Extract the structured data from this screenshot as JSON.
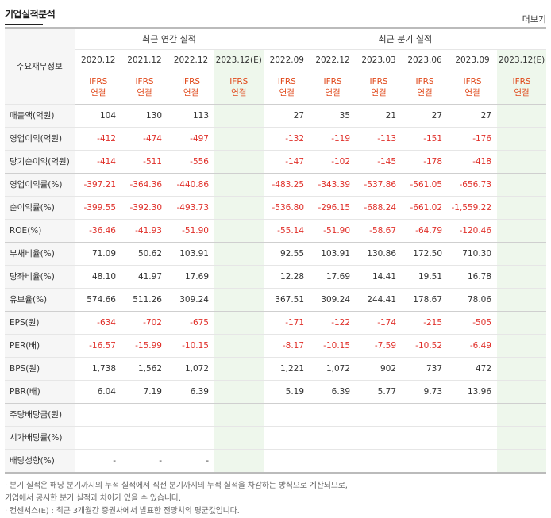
{
  "header": {
    "title": "기업실적분석",
    "more_label": "더보기"
  },
  "table": {
    "row_header_label": "주요재무정보",
    "annual_label": "최근 연간 실적",
    "quarter_label": "최근 분기 실적",
    "annual_dates": [
      "2020.12",
      "2021.12",
      "2022.12",
      "2023.12(E)"
    ],
    "quarter_dates": [
      "2022.09",
      "2022.12",
      "2023.03",
      "2023.06",
      "2023.09",
      "2023.12(E)"
    ],
    "ifrs_top": "IFRS",
    "ifrs_bottom": "연결",
    "rows": [
      {
        "label": "매출액(억원)",
        "values": [
          "104",
          "130",
          "113",
          "",
          "27",
          "35",
          "21",
          "27",
          "27",
          ""
        ]
      },
      {
        "label": "영업이익(억원)",
        "values": [
          "-412",
          "-474",
          "-497",
          "",
          "-132",
          "-119",
          "-113",
          "-151",
          "-176",
          ""
        ]
      },
      {
        "label": "당기순이익(억원)",
        "values": [
          "-414",
          "-511",
          "-556",
          "",
          "-147",
          "-102",
          "-145",
          "-178",
          "-418",
          ""
        ]
      },
      {
        "label": "영업이익률(%)",
        "values": [
          "-397.21",
          "-364.36",
          "-440.86",
          "",
          "-483.25",
          "-343.39",
          "-537.86",
          "-561.05",
          "-656.73",
          ""
        ]
      },
      {
        "label": "순이익률(%)",
        "values": [
          "-399.55",
          "-392.30",
          "-493.73",
          "",
          "-536.80",
          "-296.15",
          "-688.24",
          "-661.02",
          "-1,559.22",
          ""
        ]
      },
      {
        "label": "ROE(%)",
        "values": [
          "-36.46",
          "-41.93",
          "-51.90",
          "",
          "-55.14",
          "-51.90",
          "-58.67",
          "-64.79",
          "-120.46",
          ""
        ]
      },
      {
        "label": "부채비율(%)",
        "values": [
          "71.09",
          "50.62",
          "103.91",
          "",
          "92.55",
          "103.91",
          "130.86",
          "172.50",
          "710.30",
          ""
        ]
      },
      {
        "label": "당좌비율(%)",
        "values": [
          "48.10",
          "41.97",
          "17.69",
          "",
          "12.28",
          "17.69",
          "14.41",
          "19.51",
          "16.78",
          ""
        ]
      },
      {
        "label": "유보율(%)",
        "values": [
          "574.66",
          "511.26",
          "309.24",
          "",
          "367.51",
          "309.24",
          "244.41",
          "178.67",
          "78.06",
          ""
        ]
      },
      {
        "label": "EPS(원)",
        "values": [
          "-634",
          "-702",
          "-675",
          "",
          "-171",
          "-122",
          "-174",
          "-215",
          "-505",
          ""
        ]
      },
      {
        "label": "PER(배)",
        "values": [
          "-16.57",
          "-15.99",
          "-10.15",
          "",
          "-8.17",
          "-10.15",
          "-7.59",
          "-10.52",
          "-6.49",
          ""
        ]
      },
      {
        "label": "BPS(원)",
        "values": [
          "1,738",
          "1,562",
          "1,072",
          "",
          "1,221",
          "1,072",
          "902",
          "737",
          "472",
          ""
        ]
      },
      {
        "label": "PBR(배)",
        "values": [
          "6.04",
          "7.19",
          "6.39",
          "",
          "5.19",
          "6.39",
          "5.77",
          "9.73",
          "13.96",
          ""
        ]
      },
      {
        "label": "주당배당금(원)",
        "values": [
          "",
          "",
          "",
          "",
          "",
          "",
          "",
          "",
          "",
          ""
        ]
      },
      {
        "label": "시가배당률(%)",
        "values": [
          "",
          "",
          "",
          "",
          "",
          "",
          "",
          "",
          "",
          ""
        ]
      },
      {
        "label": "배당성향(%)",
        "values": [
          "-",
          "-",
          "-",
          "",
          "",
          "",
          "",
          "",
          "",
          ""
        ]
      }
    ]
  },
  "footnotes": [
    "· 분기 실적은 해당 분기까지의 누적 실적에서 직전 분기까지의 누적 실적을 차감하는 방식으로 계산되므로,",
    "  기업에서 공시한 분기 실적과 차이가 있을 수 있습니다.",
    "· 컨센서스(E) : 최근 3개월간 증권사에서 발표한 전망치의 평균값입니다."
  ],
  "colors": {
    "negative": "#e0302a",
    "ifrs": "#e0491b",
    "estimate_bg": "#eef7ec"
  }
}
